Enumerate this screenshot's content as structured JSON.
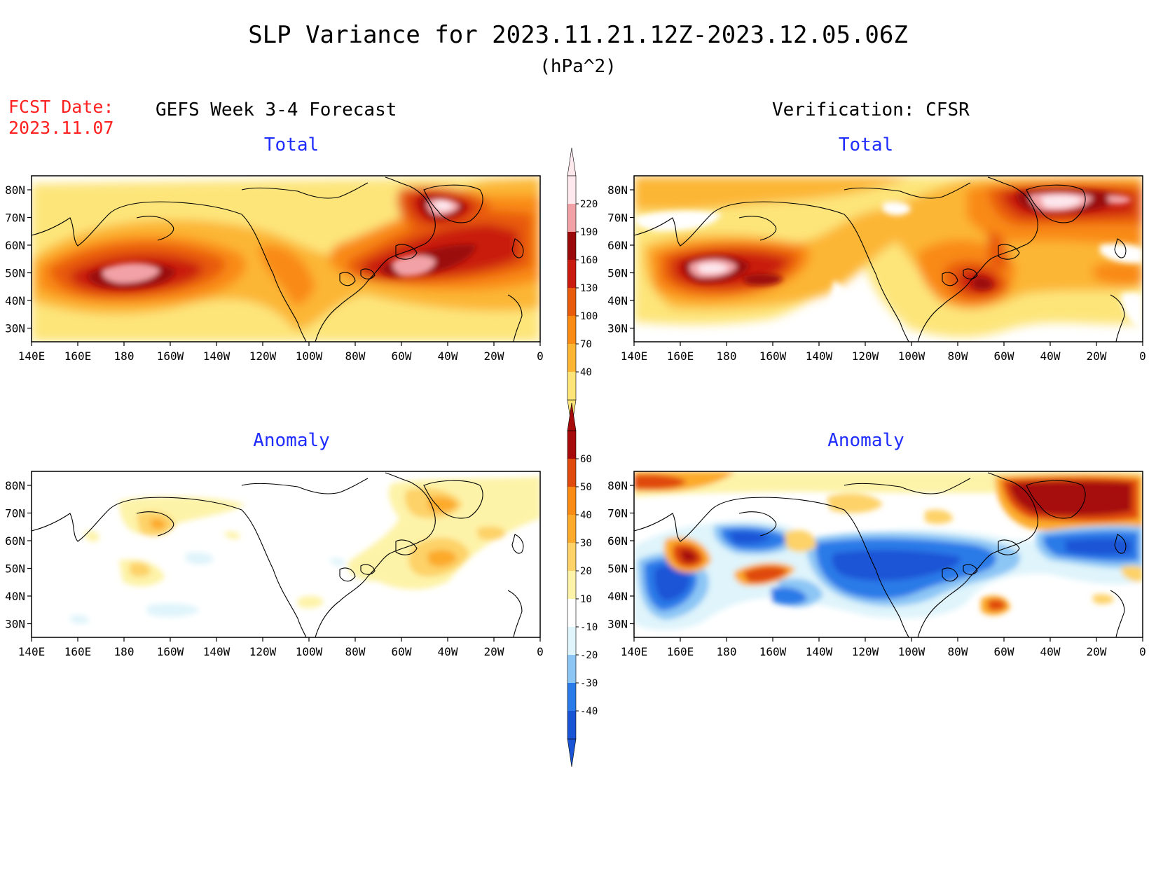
{
  "header": {
    "title": "SLP Variance for 2023.11.21.12Z-2023.12.05.06Z",
    "units": "(hPa^2)",
    "fcst_label": "FCST Date:",
    "fcst_date": "2023.11.07",
    "left_column": "GEFS Week 3-4 Forecast",
    "right_column": "Verification: CFSR"
  },
  "panels": {
    "forecast_total": "Total",
    "verif_total": "Total",
    "forecast_anom": "Anomaly",
    "verif_anom": "Anomaly"
  },
  "axes": {
    "lat_labels": [
      "80N",
      "70N",
      "60N",
      "50N",
      "40N",
      "30N"
    ],
    "lon_labels": [
      "140E",
      "160E",
      "180",
      "160W",
      "140W",
      "120W",
      "100W",
      "80W",
      "60W",
      "40W",
      "20W",
      "0"
    ]
  },
  "colorbars": {
    "total": {
      "levels": [
        "40",
        "70",
        "100",
        "130",
        "160",
        "190",
        "220"
      ],
      "colors": [
        "#fde57a",
        "#fcb634",
        "#f98a14",
        "#e85a0c",
        "#c91b0f",
        "#9b0a0a",
        "#f2a2a6",
        "#fde8ee"
      ]
    },
    "anomaly": {
      "levels": [
        "-40",
        "-30",
        "-20",
        "-10",
        "10",
        "20",
        "30",
        "40",
        "50",
        "60"
      ],
      "colors": [
        "#1a54d6",
        "#2a7ae8",
        "#8cc6f5",
        "#dff4fb",
        "#ffffff",
        "#fdf3a8",
        "#fdd268",
        "#fcaa2c",
        "#f98a14",
        "#e04a0c",
        "#a60a0a"
      ]
    }
  }
}
